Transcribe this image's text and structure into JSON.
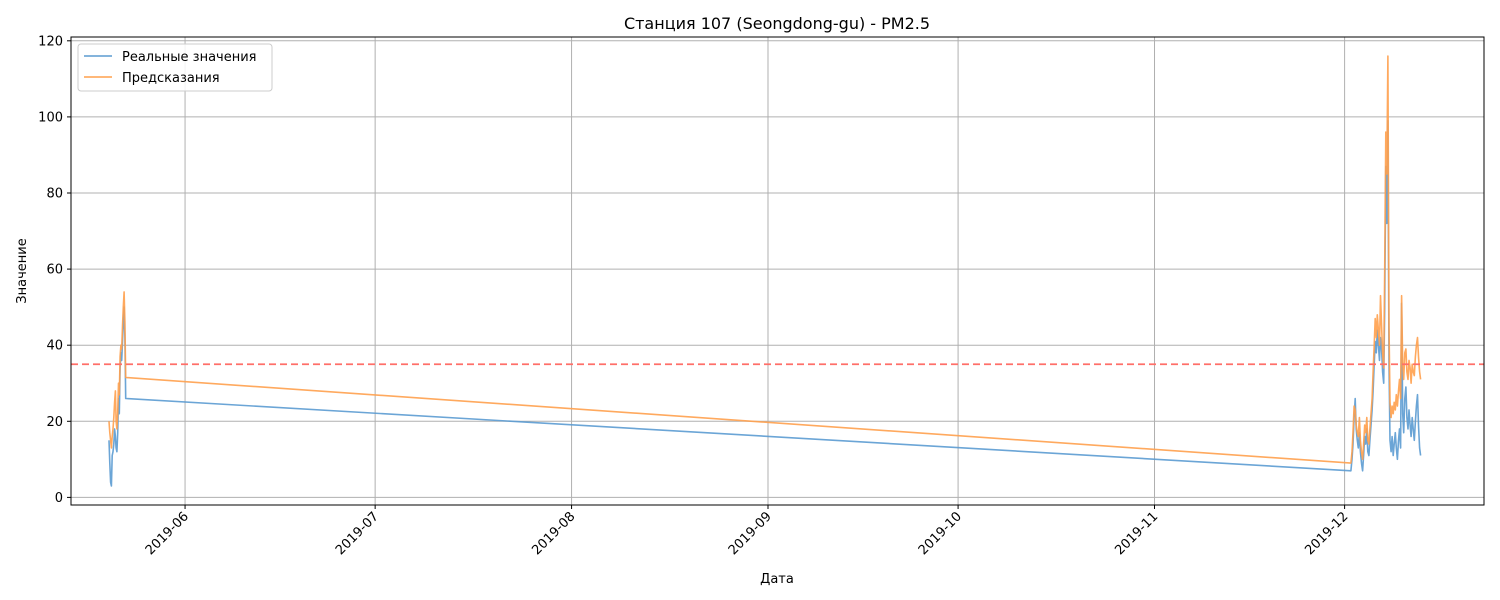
{
  "chart_data": {
    "type": "line",
    "title": "Станция 107 (Seongdong-gu) - PM2.5",
    "xlabel": "Дата",
    "ylabel": "Значение",
    "xlim": [
      "2019-05-14",
      "2019-12-23"
    ],
    "ylim": [
      -2,
      121
    ],
    "y_ticks": [
      0,
      20,
      40,
      60,
      80,
      100,
      120
    ],
    "x_ticks": [
      "2019-06",
      "2019-07",
      "2019-08",
      "2019-09",
      "2019-10",
      "2019-11",
      "2019-12"
    ],
    "x_tick_dates": [
      "2019-06-01",
      "2019-07-01",
      "2019-08-01",
      "2019-09-01",
      "2019-10-01",
      "2019-11-01",
      "2019-12-01"
    ],
    "grid": true,
    "legend_position": "top-left",
    "threshold": {
      "value": 35,
      "color": "#ff6f69",
      "style": "dashed"
    },
    "series": [
      {
        "name": "Реальные значения",
        "color": "#5b9bd1",
        "points": [
          [
            "2019-05-20T00:00",
            15
          ],
          [
            "2019-05-20T03:00",
            9
          ],
          [
            "2019-05-20T06:00",
            4
          ],
          [
            "2019-05-20T09:00",
            3
          ],
          [
            "2019-05-20T12:00",
            11
          ],
          [
            "2019-05-20T15:00",
            12
          ],
          [
            "2019-05-20T18:00",
            14
          ],
          [
            "2019-05-20T21:00",
            18
          ],
          [
            "2019-05-21T00:00",
            16
          ],
          [
            "2019-05-21T03:00",
            13
          ],
          [
            "2019-05-21T06:00",
            12
          ],
          [
            "2019-05-21T09:00",
            17
          ],
          [
            "2019-05-21T12:00",
            26
          ],
          [
            "2019-05-21T15:00",
            22
          ],
          [
            "2019-05-21T18:00",
            34
          ],
          [
            "2019-05-21T21:00",
            38
          ],
          [
            "2019-05-22T00:00",
            36
          ],
          [
            "2019-05-22T03:00",
            41
          ],
          [
            "2019-05-22T06:00",
            46
          ],
          [
            "2019-05-22T09:00",
            50
          ],
          [
            "2019-05-22T12:00",
            42
          ],
          [
            "2019-05-22T15:00",
            26
          ],
          [
            "2019-12-02T00:00",
            7
          ],
          [
            "2019-12-02T04:00",
            10
          ],
          [
            "2019-12-02T08:00",
            14
          ],
          [
            "2019-12-02T12:00",
            21
          ],
          [
            "2019-12-02T16:00",
            26
          ],
          [
            "2019-12-02T20:00",
            18
          ],
          [
            "2019-12-03T00:00",
            15
          ],
          [
            "2019-12-03T04:00",
            13
          ],
          [
            "2019-12-03T08:00",
            17
          ],
          [
            "2019-12-03T12:00",
            12
          ],
          [
            "2019-12-03T16:00",
            9
          ],
          [
            "2019-12-03T20:00",
            7
          ],
          [
            "2019-12-04T00:00",
            11
          ],
          [
            "2019-12-04T04:00",
            16
          ],
          [
            "2019-12-04T08:00",
            14
          ],
          [
            "2019-12-04T12:00",
            18
          ],
          [
            "2019-12-04T16:00",
            12
          ],
          [
            "2019-12-04T20:00",
            11
          ],
          [
            "2019-12-05T00:00",
            15
          ],
          [
            "2019-12-05T04:00",
            19
          ],
          [
            "2019-12-05T08:00",
            23
          ],
          [
            "2019-12-05T12:00",
            28
          ],
          [
            "2019-12-05T16:00",
            35
          ],
          [
            "2019-12-05T20:00",
            41
          ],
          [
            "2019-12-06T00:00",
            38
          ],
          [
            "2019-12-06T04:00",
            44
          ],
          [
            "2019-12-06T08:00",
            40
          ],
          [
            "2019-12-06T12:00",
            36
          ],
          [
            "2019-12-06T16:00",
            42
          ],
          [
            "2019-12-06T20:00",
            39
          ],
          [
            "2019-12-07T00:00",
            33
          ],
          [
            "2019-12-07T04:00",
            30
          ],
          [
            "2019-12-07T08:00",
            50
          ],
          [
            "2019-12-07T12:00",
            87
          ],
          [
            "2019-12-07T16:00",
            72
          ],
          [
            "2019-12-07T20:00",
            99
          ],
          [
            "2019-12-08T00:00",
            35
          ],
          [
            "2019-12-08T04:00",
            15
          ],
          [
            "2019-12-08T08:00",
            12
          ],
          [
            "2019-12-08T12:00",
            16
          ],
          [
            "2019-12-08T16:00",
            11
          ],
          [
            "2019-12-08T20:00",
            14
          ],
          [
            "2019-12-09T00:00",
            17
          ],
          [
            "2019-12-09T04:00",
            13
          ],
          [
            "2019-12-09T08:00",
            10
          ],
          [
            "2019-12-09T12:00",
            15
          ],
          [
            "2019-12-09T16:00",
            18
          ],
          [
            "2019-12-09T20:00",
            13
          ],
          [
            "2019-12-10T00:00",
            51
          ],
          [
            "2019-12-10T04:00",
            22
          ],
          [
            "2019-12-10T08:00",
            17
          ],
          [
            "2019-12-10T12:00",
            26
          ],
          [
            "2019-12-10T16:00",
            29
          ],
          [
            "2019-12-10T20:00",
            21
          ],
          [
            "2019-12-11T00:00",
            18
          ],
          [
            "2019-12-11T04:00",
            23
          ],
          [
            "2019-12-11T08:00",
            19
          ],
          [
            "2019-12-11T12:00",
            16
          ],
          [
            "2019-12-11T16:00",
            21
          ],
          [
            "2019-12-11T20:00",
            18
          ],
          [
            "2019-12-12T00:00",
            15
          ],
          [
            "2019-12-12T04:00",
            20
          ],
          [
            "2019-12-12T08:00",
            24
          ],
          [
            "2019-12-12T12:00",
            27
          ],
          [
            "2019-12-12T16:00",
            19
          ],
          [
            "2019-12-12T20:00",
            13
          ],
          [
            "2019-12-13T00:00",
            11
          ]
        ]
      },
      {
        "name": "Предсказания",
        "color": "#ffa04d",
        "points": [
          [
            "2019-05-20T00:00",
            20
          ],
          [
            "2019-05-20T03:00",
            17
          ],
          [
            "2019-05-20T06:00",
            15
          ],
          [
            "2019-05-20T09:00",
            13
          ],
          [
            "2019-05-20T12:00",
            16
          ],
          [
            "2019-05-20T15:00",
            18
          ],
          [
            "2019-05-20T18:00",
            21
          ],
          [
            "2019-05-20T21:00",
            25
          ],
          [
            "2019-05-21T00:00",
            28
          ],
          [
            "2019-05-21T03:00",
            20
          ],
          [
            "2019-05-21T06:00",
            18
          ],
          [
            "2019-05-21T09:00",
            22
          ],
          [
            "2019-05-21T12:00",
            30
          ],
          [
            "2019-05-21T15:00",
            27
          ],
          [
            "2019-05-21T18:00",
            37
          ],
          [
            "2019-05-21T21:00",
            40
          ],
          [
            "2019-05-22T00:00",
            39
          ],
          [
            "2019-05-22T03:00",
            45
          ],
          [
            "2019-05-22T06:00",
            50
          ],
          [
            "2019-05-22T09:00",
            54
          ],
          [
            "2019-05-22T12:00",
            46
          ],
          [
            "2019-05-22T15:00",
            31.5
          ],
          [
            "2019-12-02T00:00",
            9
          ],
          [
            "2019-12-02T04:00",
            12
          ],
          [
            "2019-12-02T08:00",
            17
          ],
          [
            "2019-12-02T12:00",
            24
          ],
          [
            "2019-12-02T16:00",
            23
          ],
          [
            "2019-12-02T20:00",
            19
          ],
          [
            "2019-12-03T00:00",
            17
          ],
          [
            "2019-12-03T04:00",
            16
          ],
          [
            "2019-12-03T08:00",
            21
          ],
          [
            "2019-12-03T12:00",
            15
          ],
          [
            "2019-12-03T16:00",
            12
          ],
          [
            "2019-12-03T20:00",
            10
          ],
          [
            "2019-12-04T00:00",
            14
          ],
          [
            "2019-12-04T04:00",
            19
          ],
          [
            "2019-12-04T08:00",
            17
          ],
          [
            "2019-12-04T12:00",
            21
          ],
          [
            "2019-12-04T16:00",
            15
          ],
          [
            "2019-12-04T20:00",
            14
          ],
          [
            "2019-12-05T00:00",
            18
          ],
          [
            "2019-12-05T04:00",
            22
          ],
          [
            "2019-12-05T08:00",
            26
          ],
          [
            "2019-12-05T12:00",
            33
          ],
          [
            "2019-12-05T16:00",
            40
          ],
          [
            "2019-12-05T20:00",
            47
          ],
          [
            "2019-12-06T00:00",
            42
          ],
          [
            "2019-12-06T04:00",
            48
          ],
          [
            "2019-12-06T08:00",
            44
          ],
          [
            "2019-12-06T12:00",
            40
          ],
          [
            "2019-12-06T16:00",
            53
          ],
          [
            "2019-12-06T20:00",
            45
          ],
          [
            "2019-12-07T00:00",
            38
          ],
          [
            "2019-12-07T04:00",
            34
          ],
          [
            "2019-12-07T08:00",
            60
          ],
          [
            "2019-12-07T12:00",
            96
          ],
          [
            "2019-12-07T16:00",
            85
          ],
          [
            "2019-12-07T20:00",
            116
          ],
          [
            "2019-12-08T00:00",
            45
          ],
          [
            "2019-12-08T04:00",
            25
          ],
          [
            "2019-12-08T08:00",
            21
          ],
          [
            "2019-12-08T12:00",
            24
          ],
          [
            "2019-12-08T16:00",
            22
          ],
          [
            "2019-12-08T20:00",
            25
          ],
          [
            "2019-12-09T00:00",
            23
          ],
          [
            "2019-12-09T04:00",
            27
          ],
          [
            "2019-12-09T08:00",
            24
          ],
          [
            "2019-12-09T12:00",
            28
          ],
          [
            "2019-12-09T16:00",
            31
          ],
          [
            "2019-12-09T20:00",
            26
          ],
          [
            "2019-12-10T00:00",
            53
          ],
          [
            "2019-12-10T04:00",
            35
          ],
          [
            "2019-12-10T08:00",
            31
          ],
          [
            "2019-12-10T12:00",
            38
          ],
          [
            "2019-12-10T16:00",
            39
          ],
          [
            "2019-12-10T20:00",
            33
          ],
          [
            "2019-12-11T00:00",
            31
          ],
          [
            "2019-12-11T04:00",
            36
          ],
          [
            "2019-12-11T08:00",
            34
          ],
          [
            "2019-12-11T12:00",
            30
          ],
          [
            "2019-12-11T16:00",
            35
          ],
          [
            "2019-12-11T20:00",
            33
          ],
          [
            "2019-12-12T00:00",
            32
          ],
          [
            "2019-12-12T04:00",
            37
          ],
          [
            "2019-12-12T08:00",
            40
          ],
          [
            "2019-12-12T12:00",
            42
          ],
          [
            "2019-12-12T16:00",
            37
          ],
          [
            "2019-12-12T20:00",
            33
          ],
          [
            "2019-12-13T00:00",
            31
          ]
        ]
      }
    ]
  }
}
